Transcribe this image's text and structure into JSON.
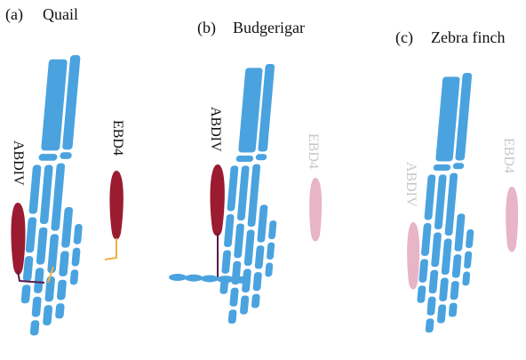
{
  "panels": [
    {
      "letter": "(a)",
      "title": "Quail",
      "muscles": [
        "ABDIV",
        "EBD4"
      ]
    },
    {
      "letter": "(b)",
      "title": "Budgerigar",
      "muscles": [
        "ABDIV",
        "EBD4"
      ]
    },
    {
      "letter": "(c)",
      "title": "Zebra finch",
      "muscles": [
        "ABDIV",
        "EBD4"
      ]
    }
  ]
}
